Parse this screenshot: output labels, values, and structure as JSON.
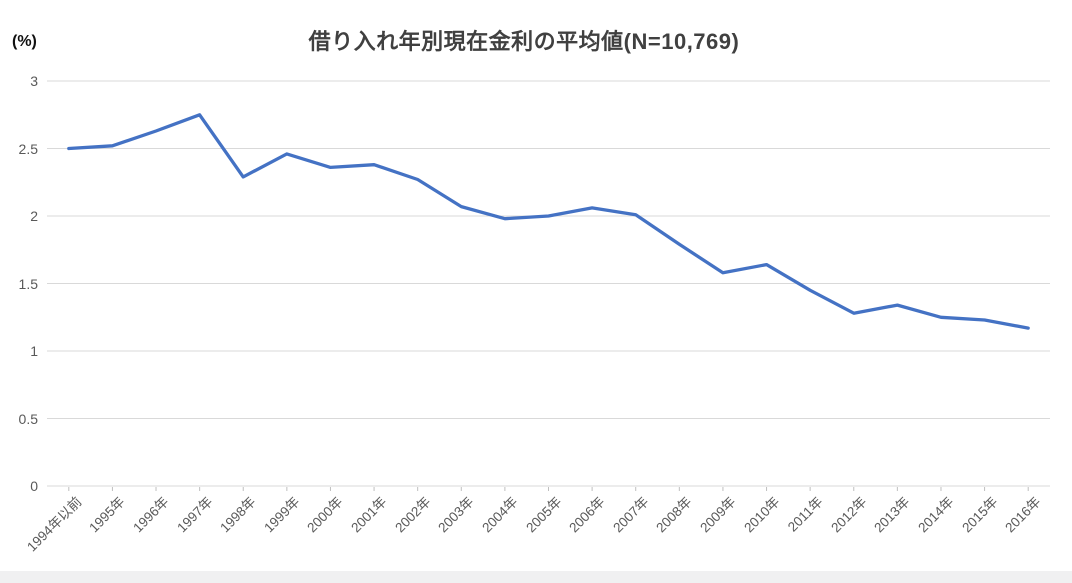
{
  "chart_data": {
    "type": "line",
    "title": "借り入れ年別現在金利の平均値(N=10,769)",
    "unit_label": "(%)",
    "categories": [
      "1994年以前",
      "1995年",
      "1996年",
      "1997年",
      "1998年",
      "1999年",
      "2000年",
      "2001年",
      "2002年",
      "2003年",
      "2004年",
      "2005年",
      "2006年",
      "2007年",
      "2008年",
      "2009年",
      "2010年",
      "2011年",
      "2012年",
      "2013年",
      "2014年",
      "2015年",
      "2016年"
    ],
    "values": [
      2.5,
      2.52,
      2.63,
      2.75,
      2.29,
      2.46,
      2.36,
      2.38,
      2.27,
      2.07,
      1.98,
      2.0,
      2.06,
      2.01,
      1.79,
      1.58,
      1.64,
      1.45,
      1.28,
      1.34,
      1.25,
      1.23,
      1.17
    ],
    "xlabel": "",
    "ylabel": "(%)",
    "ylim": [
      0,
      3
    ],
    "ytick_step": 0.5,
    "ytick_labels": [
      "0",
      "0.5",
      "1",
      "1.5",
      "2",
      "2.5",
      "3"
    ],
    "grid": true,
    "legend": "none",
    "colors": {
      "line": "#4472C4",
      "gridline": "#D9D9D9",
      "tick": "#BFBFBF",
      "title_text": "#404040",
      "axis_text": "#595959"
    }
  }
}
